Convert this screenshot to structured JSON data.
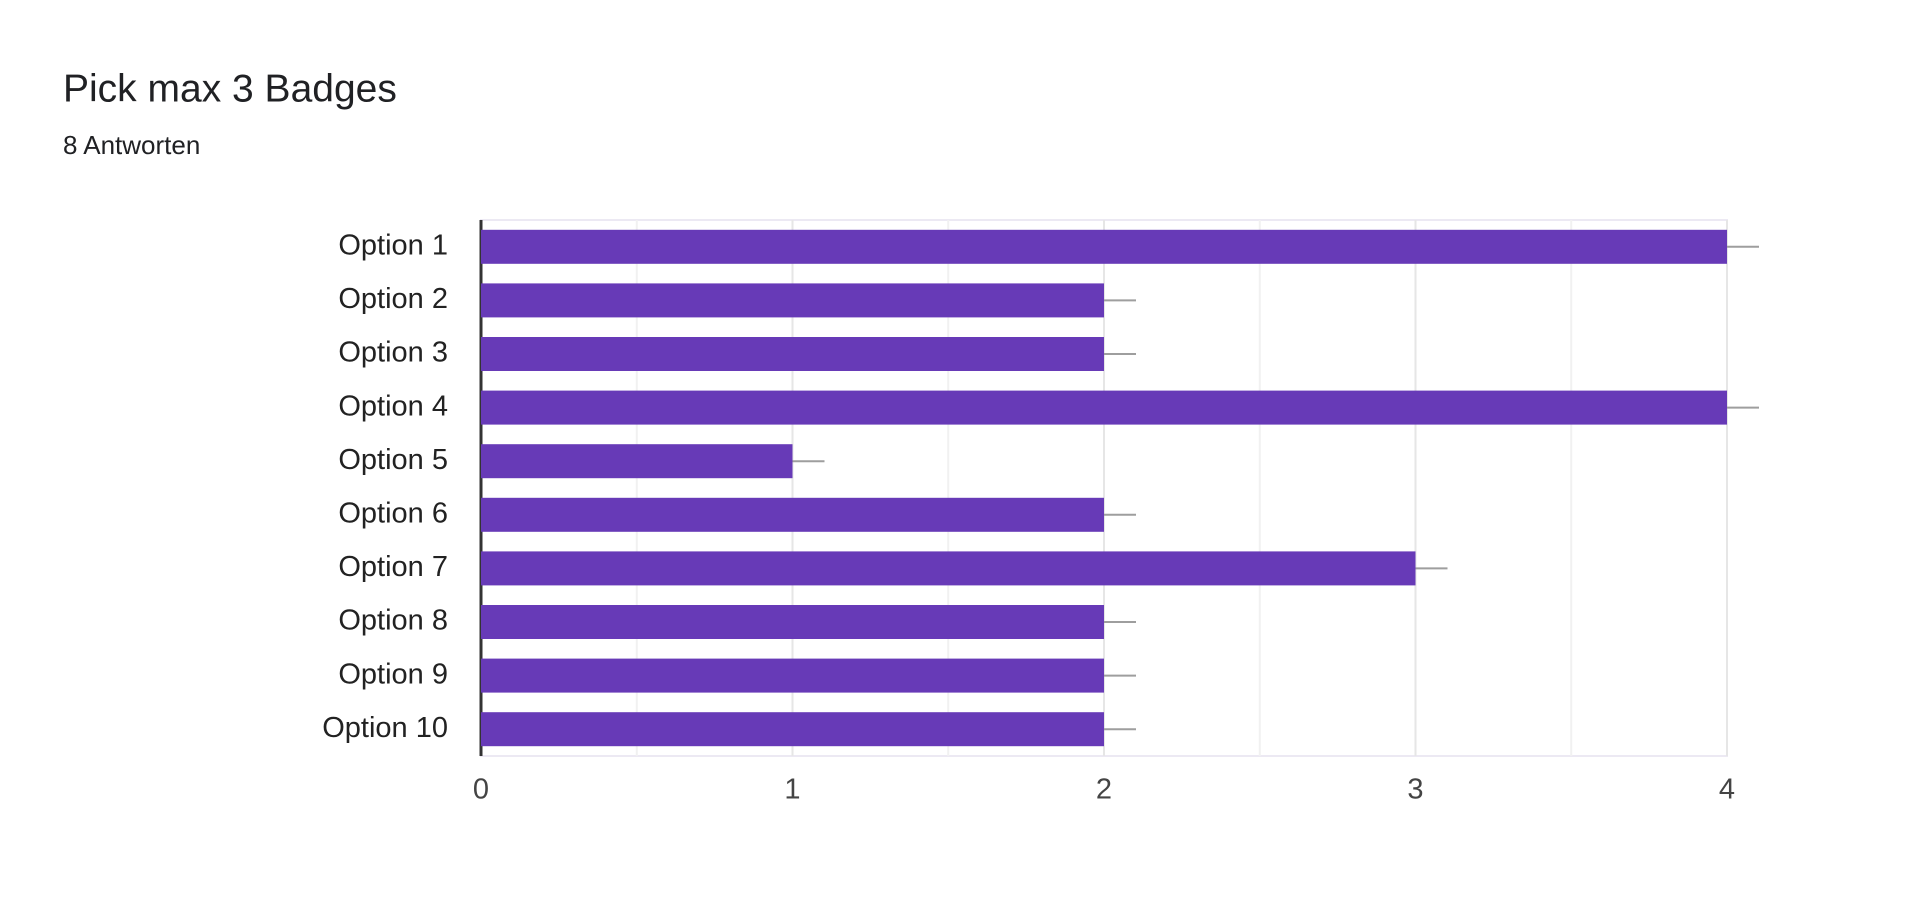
{
  "chart_data": {
    "type": "bar",
    "orientation": "horizontal",
    "title": "Pick max 3 Badges",
    "subtitle": "8 Antworten",
    "categories": [
      "Option 1",
      "Option 2",
      "Option 3",
      "Option 4",
      "Option 5",
      "Option 6",
      "Option 7",
      "Option 8",
      "Option 9",
      "Option 10"
    ],
    "values": [
      4,
      2,
      2,
      4,
      1,
      2,
      3,
      2,
      2,
      2
    ],
    "color": "#673ab7",
    "xlim": [
      0,
      4
    ],
    "xticks": [
      0,
      1,
      2,
      3,
      4
    ],
    "grid": true,
    "minor_grid": true
  }
}
